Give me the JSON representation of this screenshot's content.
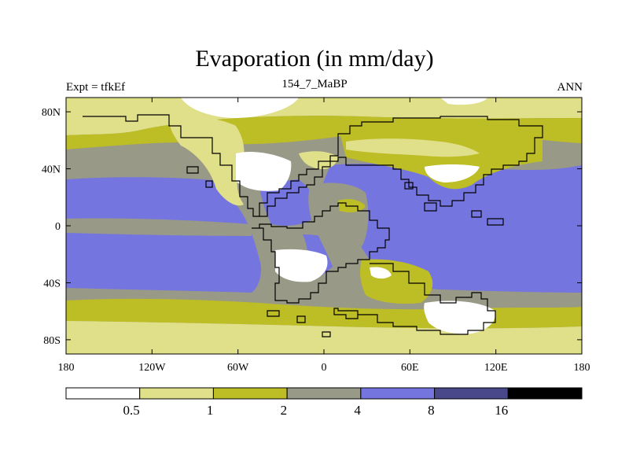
{
  "title": "Evaporation (in mm/day)",
  "subtitle_left": "Expt = tfkEf",
  "subtitle_center": "154_7_MaBP",
  "subtitle_right": "ANN",
  "map": {
    "projection": "cylindrical-equidistant",
    "lon_range": [
      -180,
      180
    ],
    "lat_range": [
      -90,
      90
    ],
    "x_ticks": [
      {
        "value": -180,
        "label": "180"
      },
      {
        "value": -120,
        "label": "120W"
      },
      {
        "value": -60,
        "label": "60W"
      },
      {
        "value": 0,
        "label": "0"
      },
      {
        "value": 60,
        "label": "60E"
      },
      {
        "value": 120,
        "label": "120E"
      },
      {
        "value": 180,
        "label": "180"
      }
    ],
    "y_ticks": [
      {
        "value": 80,
        "label": "80N"
      },
      {
        "value": 40,
        "label": "40N"
      },
      {
        "value": 0,
        "label": "0"
      },
      {
        "value": -40,
        "label": "40S"
      },
      {
        "value": -80,
        "label": "80S"
      }
    ],
    "field": "Evaporation",
    "units": "mm/day",
    "continent_outline_color": "#000000"
  },
  "colorbar": {
    "levels": [
      "0.5",
      "1",
      "2",
      "4",
      "8",
      "16"
    ],
    "colors": [
      "#ffffff",
      "#e0e08a",
      "#bdbd26",
      "#999987",
      "#7575e0",
      "#48488a",
      "#000000"
    ]
  }
}
